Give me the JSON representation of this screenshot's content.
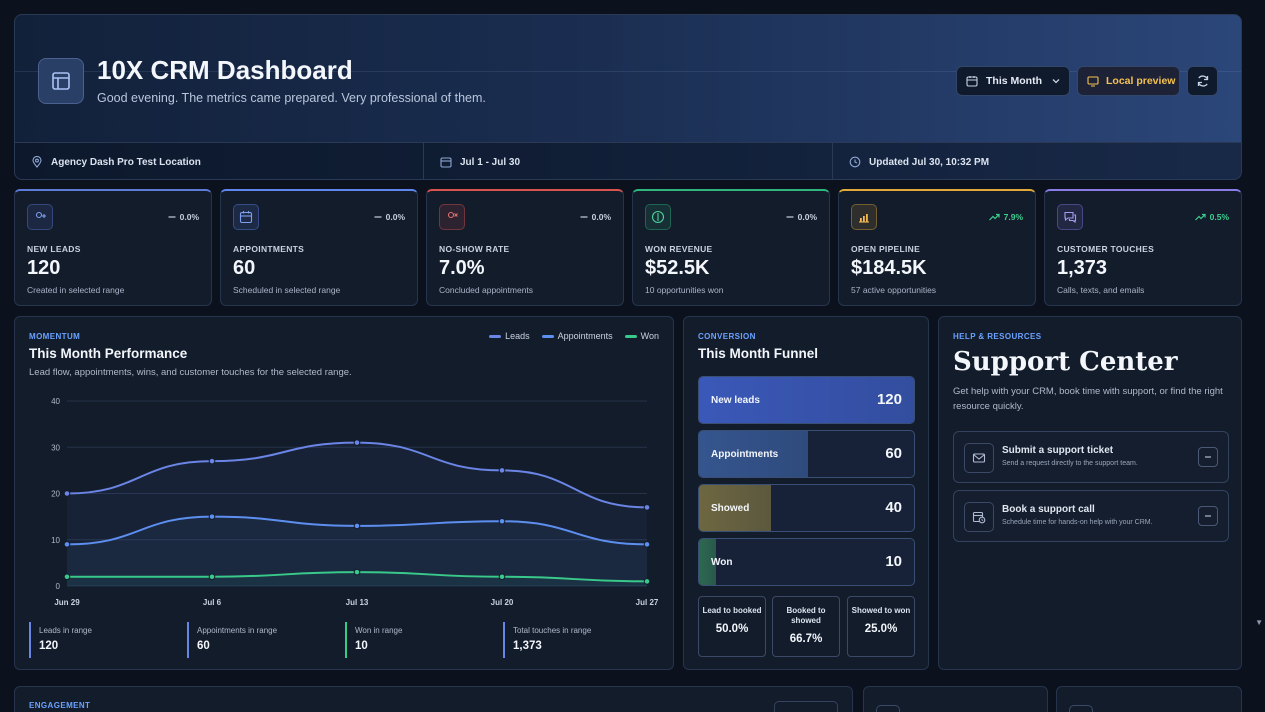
{
  "header": {
    "title": "10X CRM Dashboard",
    "subtitle": "Good evening. The metrics came prepared. Very professional of them.",
    "range_select": "This Month",
    "preview_label": "Local preview",
    "location": "Agency Dash Pro Test Location",
    "date_range": "Jul 1 - Jul 30",
    "updated": "Updated Jul 30, 10:32 PM"
  },
  "kpis": [
    {
      "label": "NEW LEADS",
      "value": "120",
      "note": "Created in selected range",
      "delta": "0.0%",
      "trend": "flat",
      "accent": "#5b7bd6",
      "icon": "user-plus-icon"
    },
    {
      "label": "APPOINTMENTS",
      "value": "60",
      "note": "Scheduled in selected range",
      "delta": "0.0%",
      "trend": "flat",
      "accent": "#5f86ee",
      "icon": "calendar-icon"
    },
    {
      "label": "NO-SHOW RATE",
      "value": "7.0%",
      "note": "Concluded appointments",
      "delta": "0.0%",
      "trend": "flat",
      "accent": "#d9534f",
      "icon": "user-x-icon"
    },
    {
      "label": "WON REVENUE",
      "value": "$52.5K",
      "note": "10 opportunities won",
      "delta": "0.0%",
      "trend": "flat",
      "accent": "#2fb67f",
      "icon": "dollar-icon"
    },
    {
      "label": "OPEN PIPELINE",
      "value": "$184.5K",
      "note": "57 active opportunities",
      "delta": "7.9%",
      "trend": "up",
      "accent": "#e0a93a",
      "icon": "bar-chart-icon"
    },
    {
      "label": "CUSTOMER TOUCHES",
      "value": "1,373",
      "note": "Calls, texts, and emails",
      "delta": "0.5%",
      "trend": "up",
      "accent": "#8a7be6",
      "icon": "chat-icon"
    }
  ],
  "performance": {
    "eyebrow": "MOMENTUM",
    "title": "This Month Performance",
    "desc": "Lead flow, appointments, wins, and customer touches for the selected range.",
    "stats": [
      {
        "label": "Leads in range",
        "value": "120"
      },
      {
        "label": "Appointments in range",
        "value": "60"
      },
      {
        "label": "Won in range",
        "value": "10"
      },
      {
        "label": "Total touches in range",
        "value": "1,373"
      }
    ]
  },
  "chart_data": {
    "type": "line",
    "title": "This Month Performance",
    "x": [
      "Jun 29",
      "Jul 6",
      "Jul 13",
      "Jul 20",
      "Jul 27"
    ],
    "series": [
      {
        "name": "Leads",
        "values": [
          20,
          27,
          31,
          25,
          17
        ],
        "color": "#6a85e6"
      },
      {
        "name": "Appointments",
        "values": [
          9,
          15,
          13,
          14,
          9
        ],
        "color": "#5d8ff0"
      },
      {
        "name": "Won",
        "values": [
          2,
          2,
          3,
          2,
          1
        ],
        "color": "#39c98a"
      }
    ],
    "ylim": [
      0,
      40
    ],
    "yticks": [
      0,
      10,
      20,
      30,
      40
    ],
    "grid": true,
    "legend": "top-right"
  },
  "funnel": {
    "eyebrow": "CONVERSION",
    "title": "This Month Funnel",
    "stages": [
      {
        "label": "New leads",
        "value": "120",
        "share": 1.0,
        "color": "#3a58b8"
      },
      {
        "label": "Appointments",
        "value": "60",
        "share": 0.5,
        "color": "#35558e"
      },
      {
        "label": "Showed",
        "value": "40",
        "share": 0.33,
        "color": "#6d6640"
      },
      {
        "label": "Won",
        "value": "10",
        "share": 0.08,
        "color": "#2d6650"
      }
    ],
    "ratios": [
      {
        "label": "Lead to booked",
        "value": "50.0%"
      },
      {
        "label": "Booked to showed",
        "value": "66.7%"
      },
      {
        "label": "Showed to won",
        "value": "25.0%"
      }
    ]
  },
  "support": {
    "eyebrow": "HELP & RESOURCES",
    "title": "Support Center",
    "desc": "Get help with your CRM, book time with support, or find the right resource quickly.",
    "actions": [
      {
        "title": "Submit a support ticket",
        "desc": "Send a request directly to the support team.",
        "icon": "ticket-icon"
      },
      {
        "title": "Book a support call",
        "desc": "Schedule time for hands-on help with your CRM.",
        "icon": "calendar-clock-icon"
      }
    ]
  },
  "engagement": {
    "eyebrow": "ENGAGEMENT"
  }
}
